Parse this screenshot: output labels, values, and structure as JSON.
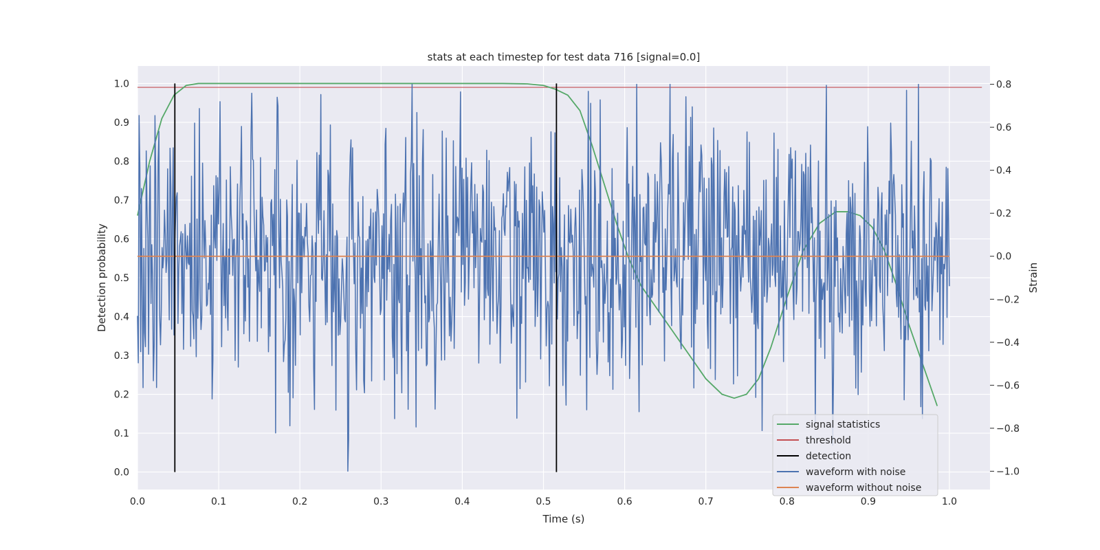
{
  "chart_data": {
    "type": "line",
    "title": "stats at each timestep for test data 716 [signal=0.0]",
    "xlabel": "Time (s)",
    "ylabel": "Detection probability",
    "y2label": "Strain",
    "xlim": [
      0.0,
      1.05
    ],
    "ylim": [
      -0.045,
      1.045
    ],
    "y2lim": [
      -1.085,
      0.885
    ],
    "xticks": [
      "0.0",
      "0.1",
      "0.2",
      "0.3",
      "0.4",
      "0.5",
      "0.6",
      "0.7",
      "0.8",
      "0.9",
      "1.0"
    ],
    "yticks": [
      "0.0",
      "0.1",
      "0.2",
      "0.3",
      "0.4",
      "0.5",
      "0.6",
      "0.7",
      "0.8",
      "0.9",
      "1.0"
    ],
    "y2ticks": [
      "−1.0",
      "−0.8",
      "−0.6",
      "−0.4",
      "−0.2",
      "0.0",
      "0.2",
      "0.4",
      "0.6",
      "0.8"
    ],
    "grid": true,
    "legend_position": "lower-right",
    "series": [
      {
        "name": "signal statistics",
        "axis": "left",
        "color": "#55a868",
        "x": [
          0.0,
          0.015,
          0.03,
          0.045,
          0.06,
          0.075,
          0.09,
          0.2,
          0.3,
          0.4,
          0.45,
          0.48,
          0.5,
          0.515,
          0.53,
          0.545,
          0.56,
          0.575,
          0.59,
          0.605,
          0.62,
          0.64,
          0.66,
          0.68,
          0.7,
          0.72,
          0.735,
          0.75,
          0.765,
          0.78,
          0.8,
          0.82,
          0.84,
          0.86,
          0.875,
          0.89,
          0.905,
          0.92,
          0.935,
          0.95,
          0.965,
          0.985
        ],
        "y": [
          0.66,
          0.8,
          0.91,
          0.97,
          0.995,
          1.0,
          1.0,
          1.0,
          1.0,
          1.0,
          1.0,
          0.999,
          0.995,
          0.985,
          0.97,
          0.93,
          0.84,
          0.74,
          0.64,
          0.55,
          0.48,
          0.42,
          0.36,
          0.3,
          0.24,
          0.2,
          0.19,
          0.2,
          0.24,
          0.32,
          0.45,
          0.57,
          0.64,
          0.67,
          0.67,
          0.66,
          0.63,
          0.57,
          0.48,
          0.38,
          0.29,
          0.17
        ]
      },
      {
        "name": "threshold",
        "axis": "left",
        "color": "#c44e52",
        "x": [
          0.0,
          1.04
        ],
        "y": [
          0.99,
          0.99
        ]
      },
      {
        "name": "detection",
        "axis": "left",
        "color": "#000000",
        "segments": [
          {
            "x": 0.046,
            "y0": 0.0,
            "y1": 1.0
          },
          {
            "x": 0.516,
            "y0": 0.0,
            "y1": 1.0
          }
        ]
      },
      {
        "name": "waveform with noise",
        "axis": "right",
        "color": "#4c72b0",
        "generated": true,
        "samples": 1024,
        "x_range": [
          0.0,
          1.0
        ],
        "y_range": [
          -1.0,
          0.8
        ],
        "std": 0.33,
        "seed": 716
      },
      {
        "name": "waveform without noise",
        "axis": "right",
        "color": "#dd8452",
        "x": [
          0.0,
          1.0
        ],
        "y": [
          0.0,
          0.0
        ]
      }
    ]
  }
}
